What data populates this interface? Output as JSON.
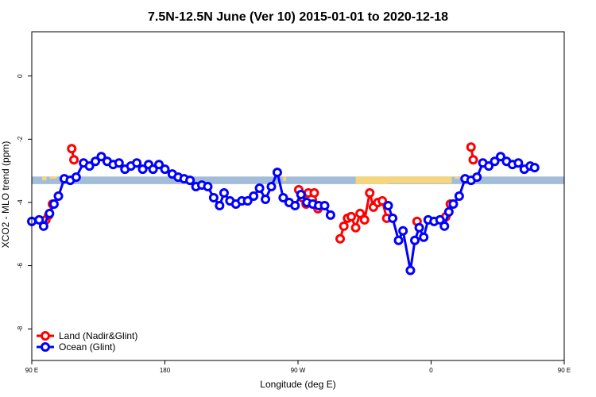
{
  "chart_data": {
    "type": "line",
    "title": "7.5N-12.5N June (Ver 10)   2015-01-01 to 2020-12-18",
    "xlabel": "Longitude (deg E)",
    "ylabel": "XCO2 - MLO trend (ppm)",
    "xlim": [
      90,
      450
    ],
    "ylim": [
      -9,
      1.4
    ],
    "x_ticks": [
      {
        "value": 90,
        "label": "90 E"
      },
      {
        "value": 180,
        "label": "180"
      },
      {
        "value": 270,
        "label": "90 W"
      },
      {
        "value": 360,
        "label": "0"
      },
      {
        "value": 450,
        "label": "90 E"
      },
      {
        "value": 540,
        "label": "180"
      }
    ],
    "y_ticks": [
      {
        "value": 0,
        "label": "0"
      },
      {
        "value": -2,
        "label": "-2"
      },
      {
        "value": -4,
        "label": "-4"
      },
      {
        "value": -6,
        "label": "-6"
      },
      {
        "value": -8,
        "label": "-8"
      }
    ],
    "band": {
      "y0": -3.18,
      "y1": -3.42,
      "ocean_color": "#a3bcd8",
      "land_color": "#f5d57e"
    },
    "legend_position": "bottom-left",
    "series": [
      {
        "name": "Land (Nadir&Glint)",
        "color": "#ff0000",
        "segments": [
          [
            [
              99.5,
              -4.55
            ],
            [
              101.5,
              -4.4
            ],
            [
              104,
              -4.05
            ]
          ],
          [
            [
              117,
              -2.3
            ],
            [
              118.5,
              -2.65
            ]
          ],
          [
            [
              270.5,
              -3.6
            ],
            [
              273,
              -3.85
            ],
            [
              275.5,
              -4.05
            ]
          ],
          [
            [
              277,
              -3.7
            ]
          ],
          [
            [
              281,
              -3.7
            ],
            [
              283.5,
              -4.2
            ]
          ],
          [
            [
              298.5,
              -5.15
            ],
            [
              301,
              -4.75
            ],
            [
              303.5,
              -4.5
            ],
            [
              306,
              -4.45
            ],
            [
              309,
              -4.8
            ],
            [
              312,
              -4.35
            ],
            [
              315,
              -4.55
            ],
            [
              318.5,
              -3.7
            ],
            [
              321,
              -4.15
            ],
            [
              324,
              -4.0
            ],
            [
              327,
              -3.95
            ],
            [
              330,
              -4.5
            ]
          ],
          [
            [
              350.5,
              -4.6
            ]
          ],
          [
            [
              370,
              -4.45
            ],
            [
              373,
              -4.05
            ]
          ],
          [
            [
              387,
              -2.25
            ],
            [
              388.5,
              -2.65
            ]
          ]
        ]
      },
      {
        "name": "Ocean (Glint)",
        "color": "#0000ff",
        "segments": [
          [
            [
              90,
              -4.6
            ],
            [
              95,
              -4.55
            ],
            [
              98,
              -4.75
            ],
            [
              102,
              -4.35
            ],
            [
              105,
              -4.05
            ],
            [
              108,
              -3.8
            ],
            [
              112,
              -3.25
            ],
            [
              116,
              -3.3
            ],
            [
              120,
              -3.2
            ],
            [
              125,
              -2.75
            ],
            [
              129,
              -2.85
            ],
            [
              133,
              -2.7
            ],
            [
              137,
              -2.55
            ],
            [
              141,
              -2.7
            ],
            [
              145,
              -2.8
            ],
            [
              149,
              -2.75
            ],
            [
              153,
              -2.95
            ],
            [
              157,
              -2.85
            ],
            [
              161,
              -2.75
            ],
            [
              165,
              -2.95
            ],
            [
              169,
              -2.8
            ],
            [
              172,
              -2.95
            ],
            [
              176,
              -2.8
            ],
            [
              180,
              -2.95
            ],
            [
              185,
              -3.1
            ],
            [
              189,
              -3.2
            ],
            [
              193,
              -3.25
            ],
            [
              197,
              -3.3
            ],
            [
              201,
              -3.5
            ],
            [
              205,
              -3.45
            ],
            [
              209,
              -3.5
            ],
            [
              213,
              -3.85
            ],
            [
              217,
              -4.1
            ],
            [
              220,
              -3.7
            ],
            [
              224,
              -3.95
            ],
            [
              228,
              -4.05
            ],
            [
              232,
              -3.95
            ],
            [
              236,
              -3.95
            ],
            [
              240,
              -3.8
            ],
            [
              244,
              -3.55
            ],
            [
              248,
              -3.9
            ],
            [
              252,
              -3.5
            ],
            [
              256,
              -3.05
            ],
            [
              260,
              -3.85
            ],
            [
              264,
              -4.0
            ],
            [
              268,
              -4.1
            ],
            [
              272,
              -3.75
            ],
            [
              276,
              -4.0
            ],
            [
              280,
              -4.05
            ],
            [
              284,
              -4.1
            ],
            [
              288,
              -4.1
            ],
            [
              292,
              -4.4
            ]
          ],
          [
            [
              331,
              -4.1
            ],
            [
              334,
              -4.5
            ],
            [
              338,
              -5.2
            ],
            [
              341,
              -4.9
            ],
            [
              346,
              -6.15
            ],
            [
              349,
              -5.2
            ],
            [
              352,
              -4.8
            ],
            [
              355,
              -5.1
            ],
            [
              358,
              -4.55
            ],
            [
              362,
              -4.6
            ],
            [
              366,
              -4.55
            ],
            [
              369,
              -4.75
            ],
            [
              372,
              -4.3
            ],
            [
              375,
              -4.05
            ],
            [
              379,
              -3.8
            ],
            [
              383,
              -3.25
            ],
            [
              387,
              -3.3
            ],
            [
              391,
              -3.2
            ],
            [
              395,
              -2.75
            ],
            [
              399,
              -2.85
            ],
            [
              403,
              -2.7
            ],
            [
              407,
              -2.55
            ],
            [
              411,
              -2.7
            ],
            [
              415,
              -2.8
            ],
            [
              419,
              -2.75
            ],
            [
              423,
              -2.95
            ],
            [
              427,
              -2.85
            ],
            [
              430,
              -2.9
            ]
          ]
        ]
      }
    ]
  }
}
